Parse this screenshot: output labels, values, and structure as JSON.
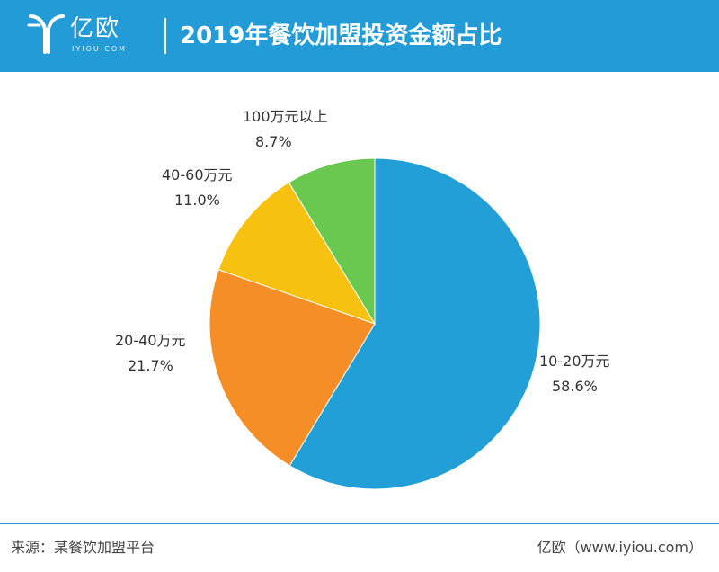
{
  "header": {
    "logo_text": "亿欧",
    "logo_subtext": "IYIOU·COM",
    "title": "2019年餐饮加盟投资金额占比"
  },
  "colors": {
    "header_bg": "#229bd6",
    "slice_10_20": "#239fd8",
    "slice_20_40": "#f68e27",
    "slice_40_60": "#f7c10f",
    "slice_100_plus": "#68c84f"
  },
  "chart_data": {
    "type": "pie",
    "title": "2019年餐饮加盟投资金额占比",
    "start_angle": "12 o'clock, clockwise",
    "slices": [
      {
        "label": "10-20万元",
        "value": 58.6,
        "value_label": "58.6%",
        "color": "#239fd8"
      },
      {
        "label": "20-40万元",
        "value": 21.7,
        "value_label": "21.7%",
        "color": "#f68e27"
      },
      {
        "label": "40-60万元",
        "value": 11.0,
        "value_label": "11.0%",
        "color": "#f7c10f"
      },
      {
        "label": "100万元以上",
        "value": 8.7,
        "value_label": "8.7%",
        "color": "#68c84f"
      }
    ]
  },
  "footer": {
    "source": "来源：某餐饮加盟平台",
    "brand": "亿欧（www.iyiou.com）"
  }
}
